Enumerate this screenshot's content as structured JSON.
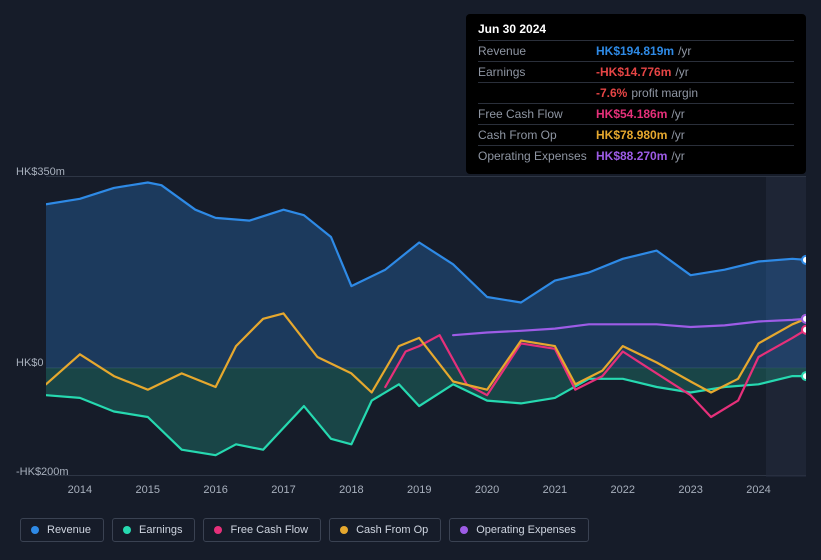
{
  "tooltip": {
    "date": "Jun 30 2024",
    "rows": [
      {
        "label": "Revenue",
        "value": "HK$194.819m",
        "unit": "/yr",
        "color": "#2e8ae6"
      },
      {
        "label": "Earnings",
        "value": "-HK$14.776m",
        "unit": "/yr",
        "color": "#e64545"
      },
      {
        "label": "",
        "value": "-7.6%",
        "unit": "profit margin",
        "color": "#e64545"
      },
      {
        "label": "Free Cash Flow",
        "value": "HK$54.186m",
        "unit": "/yr",
        "color": "#e6307a"
      },
      {
        "label": "Cash From Op",
        "value": "HK$78.980m",
        "unit": "/yr",
        "color": "#e6a82e"
      },
      {
        "label": "Operating Expenses",
        "value": "HK$88.270m",
        "unit": "/yr",
        "color": "#9d5ce6"
      }
    ]
  },
  "chart": {
    "type": "area-line",
    "background": "#161c29",
    "plot_bg": "#1a2130",
    "grid_color": "#2e3645",
    "ylim": [
      -200,
      350
    ],
    "ylabels": [
      {
        "v": 350,
        "text": "HK$350m"
      },
      {
        "v": 0,
        "text": "HK$0"
      },
      {
        "v": -200,
        "text": "-HK$200m"
      }
    ],
    "xlim": [
      2013.5,
      2024.7
    ],
    "xlabels": [
      2014,
      2015,
      2016,
      2017,
      2018,
      2019,
      2020,
      2021,
      2022,
      2023,
      2024
    ],
    "series": [
      {
        "name": "Revenue",
        "color": "#2e8ae6",
        "fill": true,
        "fill_opacity": 0.28,
        "data": [
          [
            2013.5,
            300
          ],
          [
            2014,
            310
          ],
          [
            2014.5,
            330
          ],
          [
            2015,
            340
          ],
          [
            2015.2,
            335
          ],
          [
            2015.7,
            290
          ],
          [
            2016,
            275
          ],
          [
            2016.5,
            270
          ],
          [
            2017,
            290
          ],
          [
            2017.3,
            280
          ],
          [
            2017.7,
            240
          ],
          [
            2018,
            150
          ],
          [
            2018.5,
            180
          ],
          [
            2019,
            230
          ],
          [
            2019.5,
            190
          ],
          [
            2020,
            130
          ],
          [
            2020.5,
            120
          ],
          [
            2021,
            160
          ],
          [
            2021.5,
            175
          ],
          [
            2022,
            200
          ],
          [
            2022.5,
            215
          ],
          [
            2023,
            170
          ],
          [
            2023.5,
            180
          ],
          [
            2024,
            195
          ],
          [
            2024.5,
            200
          ],
          [
            2024.7,
            198
          ]
        ]
      },
      {
        "name": "Earnings",
        "color": "#26d9b0",
        "fill": true,
        "fill_opacity": 0.22,
        "data": [
          [
            2013.5,
            -50
          ],
          [
            2014,
            -55
          ],
          [
            2014.5,
            -80
          ],
          [
            2015,
            -90
          ],
          [
            2015.5,
            -150
          ],
          [
            2016,
            -160
          ],
          [
            2016.3,
            -140
          ],
          [
            2016.7,
            -150
          ],
          [
            2017,
            -110
          ],
          [
            2017.3,
            -70
          ],
          [
            2017.7,
            -130
          ],
          [
            2018,
            -140
          ],
          [
            2018.3,
            -60
          ],
          [
            2018.7,
            -30
          ],
          [
            2019,
            -70
          ],
          [
            2019.5,
            -30
          ],
          [
            2020,
            -60
          ],
          [
            2020.5,
            -65
          ],
          [
            2021,
            -55
          ],
          [
            2021.5,
            -20
          ],
          [
            2022,
            -20
          ],
          [
            2022.5,
            -35
          ],
          [
            2023,
            -45
          ],
          [
            2023.5,
            -35
          ],
          [
            2024,
            -30
          ],
          [
            2024.5,
            -15
          ],
          [
            2024.7,
            -15
          ]
        ]
      },
      {
        "name": "Free Cash Flow",
        "color": "#e6307a",
        "fill": false,
        "data": [
          [
            2018.5,
            -35
          ],
          [
            2018.8,
            30
          ],
          [
            2019,
            40
          ],
          [
            2019.3,
            60
          ],
          [
            2019.7,
            -30
          ],
          [
            2020,
            -50
          ],
          [
            2020.5,
            45
          ],
          [
            2021,
            35
          ],
          [
            2021.3,
            -40
          ],
          [
            2021.7,
            -15
          ],
          [
            2022,
            30
          ],
          [
            2022.5,
            -10
          ],
          [
            2023,
            -50
          ],
          [
            2023.3,
            -90
          ],
          [
            2023.7,
            -60
          ],
          [
            2024,
            20
          ],
          [
            2024.5,
            55
          ],
          [
            2024.7,
            70
          ]
        ]
      },
      {
        "name": "Cash From Op",
        "color": "#e6a82e",
        "fill": false,
        "data": [
          [
            2013.5,
            -30
          ],
          [
            2014,
            25
          ],
          [
            2014.5,
            -15
          ],
          [
            2015,
            -40
          ],
          [
            2015.5,
            -10
          ],
          [
            2016,
            -35
          ],
          [
            2016.3,
            40
          ],
          [
            2016.7,
            90
          ],
          [
            2017,
            100
          ],
          [
            2017.5,
            20
          ],
          [
            2018,
            -10
          ],
          [
            2018.3,
            -45
          ],
          [
            2018.7,
            40
          ],
          [
            2019,
            55
          ],
          [
            2019.5,
            -25
          ],
          [
            2020,
            -40
          ],
          [
            2020.5,
            50
          ],
          [
            2021,
            40
          ],
          [
            2021.3,
            -30
          ],
          [
            2021.7,
            -5
          ],
          [
            2022,
            40
          ],
          [
            2022.5,
            10
          ],
          [
            2023,
            -25
          ],
          [
            2023.3,
            -45
          ],
          [
            2023.7,
            -20
          ],
          [
            2024,
            45
          ],
          [
            2024.5,
            80
          ],
          [
            2024.7,
            90
          ]
        ]
      },
      {
        "name": "Operating Expenses",
        "color": "#9d5ce6",
        "fill": false,
        "data": [
          [
            2019.5,
            60
          ],
          [
            2020,
            65
          ],
          [
            2020.5,
            68
          ],
          [
            2021,
            72
          ],
          [
            2021.5,
            80
          ],
          [
            2022,
            80
          ],
          [
            2022.5,
            80
          ],
          [
            2023,
            75
          ],
          [
            2023.5,
            78
          ],
          [
            2024,
            85
          ],
          [
            2024.5,
            88
          ],
          [
            2024.7,
            90
          ]
        ]
      }
    ],
    "legend": [
      {
        "label": "Revenue",
        "color": "#2e8ae6"
      },
      {
        "label": "Earnings",
        "color": "#26d9b0"
      },
      {
        "label": "Free Cash Flow",
        "color": "#e6307a"
      },
      {
        "label": "Cash From Op",
        "color": "#e6a82e"
      },
      {
        "label": "Operating Expenses",
        "color": "#9d5ce6"
      }
    ],
    "marker_x": 2024.5,
    "marker_radius": 4
  }
}
